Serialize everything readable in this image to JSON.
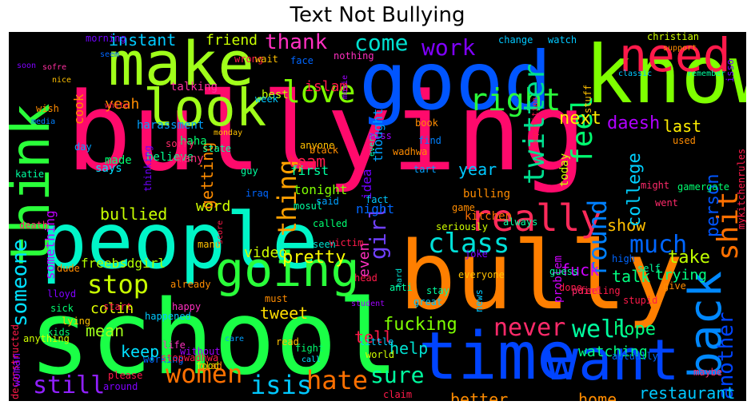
{
  "title": "Text Not Bullying",
  "background": "#000000",
  "words": [
    {
      "t": "bullying",
      "c": "#ff0a6c"
    },
    {
      "t": "bully",
      "c": "#ff7f00"
    },
    {
      "t": "school",
      "c": "#1aff46"
    },
    {
      "t": "people",
      "c": "#00f5c8"
    },
    {
      "t": "good",
      "c": "#0055ff"
    },
    {
      "t": "know",
      "c": "#7fff00"
    },
    {
      "t": "time",
      "c": "#0044ff"
    },
    {
      "t": "want",
      "c": "#0044ff"
    },
    {
      "t": "make",
      "c": "#a0ff1a"
    },
    {
      "t": "think",
      "c": "#2aff3a"
    },
    {
      "t": "look",
      "c": "#a0ff1a"
    },
    {
      "t": "need",
      "c": "#ff1a4a"
    },
    {
      "t": "going",
      "c": "#2aff3a"
    },
    {
      "t": "really",
      "c": "#ff2a5a"
    },
    {
      "t": "love",
      "c": "#7fff00"
    },
    {
      "t": "back",
      "c": "#0088ff"
    },
    {
      "t": "class",
      "c": "#00e0d8"
    },
    {
      "t": "right",
      "c": "#2aff3a"
    },
    {
      "t": "twitter",
      "c": "#00e090"
    },
    {
      "t": "stop",
      "c": "#c8ff00"
    },
    {
      "t": "still",
      "c": "#9020ff"
    },
    {
      "t": "much",
      "c": "#0066ff"
    },
    {
      "t": "never",
      "c": "#ff2a6a"
    },
    {
      "t": "well",
      "c": "#00ffa0"
    },
    {
      "t": "women",
      "c": "#ff7000"
    },
    {
      "t": "hate",
      "c": "#ff7000"
    },
    {
      "t": "isis",
      "c": "#00c8ff"
    },
    {
      "t": "sure",
      "c": "#00ffa0"
    },
    {
      "t": "thing",
      "c": "#ffa000"
    },
    {
      "t": "girl",
      "c": "#7040ff"
    },
    {
      "t": "come",
      "c": "#00e0d0"
    },
    {
      "t": "thank",
      "c": "#ff30c0"
    },
    {
      "t": "work",
      "c": "#8000ff"
    },
    {
      "t": "shit",
      "c": "#ff7000"
    },
    {
      "t": "feel",
      "c": "#00ff70"
    },
    {
      "t": "round",
      "c": "#0080ff"
    },
    {
      "t": "someone",
      "c": "#00e0ff"
    },
    {
      "t": "fucking",
      "c": "#7fff00"
    },
    {
      "t": "another",
      "c": "#0044ff"
    },
    {
      "t": "restaurant",
      "c": "#00c8ff"
    },
    {
      "t": "instant",
      "c": "#00c8ff"
    },
    {
      "t": "friend",
      "c": "#c8ff00"
    },
    {
      "t": "team",
      "c": "#ff1a4a"
    },
    {
      "t": "islam",
      "c": "#ff1a4a"
    },
    {
      "t": "pretty",
      "c": "#ffff00"
    },
    {
      "t": "video",
      "c": "#d0ff00"
    },
    {
      "t": "word",
      "c": "#d0ff00"
    },
    {
      "t": "tweet",
      "c": "#ffdd00"
    },
    {
      "t": "show",
      "c": "#ffc000"
    },
    {
      "t": "last",
      "c": "#ffee00"
    },
    {
      "t": "take",
      "c": "#c0ff00"
    },
    {
      "t": "talk",
      "c": "#00ff80"
    },
    {
      "t": "hope",
      "c": "#00ff80"
    },
    {
      "t": "keep",
      "c": "#00e0ff"
    },
    {
      "t": "help",
      "c": "#00e0d0"
    },
    {
      "t": "better",
      "c": "#ff8c00"
    },
    {
      "t": "home",
      "c": "#ff8c00"
    },
    {
      "t": "even",
      "c": "#ff30c0"
    },
    {
      "t": "tell",
      "c": "#ff1a4a"
    },
    {
      "t": "year",
      "c": "#00c8ff"
    },
    {
      "t": "next",
      "c": "#ffee00"
    },
    {
      "t": "person",
      "c": "#0055ff"
    },
    {
      "t": "daesh",
      "c": "#b000ff"
    },
    {
      "t": "college",
      "c": "#00d0ff"
    },
    {
      "t": "fuck",
      "c": "#d000ff"
    },
    {
      "t": "bullied",
      "c": "#c8ff00"
    },
    {
      "t": "getting",
      "c": "#ff8c00"
    },
    {
      "t": "mean",
      "c": "#a0ff1a"
    },
    {
      "t": "colin",
      "c": "#e0ff00"
    },
    {
      "t": "freebsdgirl",
      "c": "#b0ff00"
    },
    {
      "t": "something",
      "c": "#c000ff"
    },
    {
      "t": "thought",
      "c": "#00a0ff"
    },
    {
      "t": "trying",
      "c": "#00ff80"
    },
    {
      "t": "watching",
      "c": "#00ff80"
    },
    {
      "t": "cook",
      "c": "#ff8c00"
    },
    {
      "t": "yeah",
      "c": "#ff8c00"
    },
    {
      "t": "made",
      "c": "#00ff70"
    },
    {
      "t": "believe",
      "c": "#00ff90"
    },
    {
      "t": "harassment",
      "c": "#00a0ff"
    },
    {
      "t": "haha",
      "c": "#00ff70"
    },
    {
      "t": "many",
      "c": "#ff2a7a"
    },
    {
      "t": "first",
      "c": "#00ffa0"
    },
    {
      "t": "tonight",
      "c": "#7fff00"
    },
    {
      "t": "night",
      "c": "#0066ff"
    },
    {
      "t": "kitchen",
      "c": "#ff7000"
    },
    {
      "t": "bulling",
      "c": "#ff8c00"
    },
    {
      "t": "today",
      "c": "#d0ff00"
    },
    {
      "t": "idea",
      "c": "#7000ff"
    },
    {
      "t": "problem",
      "c": "#d000ff"
    },
    {
      "t": "says",
      "c": "#00e0ff"
    },
    {
      "t": "best",
      "c": "#c0ff00"
    },
    {
      "t": "week",
      "c": "#00c8ff"
    },
    {
      "t": "talking",
      "c": "#ff30a0"
    },
    {
      "t": "face",
      "c": "#0066ff"
    },
    {
      "t": "nothing",
      "c": "#ff30c0"
    },
    {
      "t": "wrong",
      "c": "#ff1a4a"
    },
    {
      "t": "wait",
      "c": "#ffc000"
    },
    {
      "t": "morning",
      "c": "#7000ff"
    },
    {
      "t": "change",
      "c": "#00c8ff"
    },
    {
      "t": "watch",
      "c": "#00c8ff"
    },
    {
      "t": "christian",
      "c": "#d0ff00"
    },
    {
      "t": "support",
      "c": "#ff8c00"
    },
    {
      "t": "classic",
      "c": "#00c8ff"
    },
    {
      "t": "isso",
      "c": "#7000ff"
    },
    {
      "t": "remember",
      "c": "#00ffa0"
    },
    {
      "t": "stuff",
      "c": "#ffc000"
    },
    {
      "t": "movie",
      "c": "#a000ff"
    },
    {
      "t": "competition",
      "c": "#ff1a4a"
    },
    {
      "t": "monday",
      "c": "#ffc000"
    },
    {
      "t": "state",
      "c": "#00ffa0"
    },
    {
      "t": "wadhwa",
      "c": "#ff8c00"
    },
    {
      "t": "book",
      "c": "#ff8c00"
    },
    {
      "t": "every",
      "c": "#00ffa0"
    },
    {
      "t": "find",
      "c": "#0080ff"
    },
    {
      "t": "anyone",
      "c": "#ffc000"
    },
    {
      "t": "black",
      "c": "#ff8c00"
    },
    {
      "t": "miss",
      "c": "#a000ff"
    },
    {
      "t": "tart",
      "c": "#00a0ff"
    },
    {
      "t": "used",
      "c": "#ff8c00"
    },
    {
      "t": "gamergate",
      "c": "#00ff70"
    },
    {
      "t": "mykitchenrules",
      "c": "#ff1a4a"
    },
    {
      "t": "might",
      "c": "#ff2a6a"
    },
    {
      "t": "went",
      "c": "#ff2a6a"
    },
    {
      "t": "soon",
      "c": "#8000ff"
    },
    {
      "t": "sofre",
      "c": "#ff30a0"
    },
    {
      "t": "seem",
      "c": "#0066ff"
    },
    {
      "t": "nice",
      "c": "#ffc000"
    },
    {
      "t": "white",
      "c": "#ff1a4a"
    },
    {
      "t": "wish",
      "c": "#ff8c00"
    },
    {
      "t": "media",
      "c": "#0080ff"
    },
    {
      "t": "day",
      "c": "#00a0ff"
    },
    {
      "t": "katie",
      "c": "#00ffa0"
    },
    {
      "t": "thinking",
      "c": "#7000ff"
    },
    {
      "t": "sorry",
      "c": "#ff2a6a"
    },
    {
      "t": "iraq",
      "c": "#0066ff"
    },
    {
      "t": "guy",
      "c": "#00ffa0"
    },
    {
      "t": "death",
      "c": "#ff2a6a"
    },
    {
      "t": "manu",
      "c": "#ffc000"
    },
    {
      "t": "said",
      "c": "#00a0ff"
    },
    {
      "t": "mosul",
      "c": "#00ffa0"
    },
    {
      "t": "called",
      "c": "#00ff70"
    },
    {
      "t": "seen",
      "c": "#00e0d0"
    },
    {
      "t": "head",
      "c": "#ff1a4a"
    },
    {
      "t": "victim",
      "c": "#ff1a4a"
    },
    {
      "t": "score",
      "c": "#ff1a4a"
    },
    {
      "t": "hard",
      "c": "#00e0d0"
    },
    {
      "t": "game",
      "c": "#ff8c00"
    },
    {
      "t": "seriously",
      "c": "#d0ff00"
    },
    {
      "t": "always",
      "c": "#00ffa0"
    },
    {
      "t": "fact",
      "c": "#00c8ff"
    },
    {
      "t": "dude",
      "c": "#ff8c00"
    },
    {
      "t": "lloyd",
      "c": "#8000ff"
    },
    {
      "t": "sick",
      "c": "#00ff70"
    },
    {
      "t": "lying",
      "c": "#ffc000"
    },
    {
      "t": "start",
      "c": "#ff1a4a"
    },
    {
      "t": "already",
      "c": "#ff8c00"
    },
    {
      "t": "happy",
      "c": "#ff30c0"
    },
    {
      "t": "happened",
      "c": "#00c8ff"
    },
    {
      "t": "kids",
      "c": "#00ff70"
    },
    {
      "t": "deconstructed",
      "c": "#ff1a4a"
    },
    {
      "t": "woman",
      "c": "#8000ff"
    },
    {
      "t": "anything",
      "c": "#d0ff00"
    },
    {
      "t": "please",
      "c": "#ff1a4a"
    },
    {
      "t": "around",
      "c": "#8000ff"
    },
    {
      "t": "working",
      "c": "#0066ff"
    },
    {
      "t": "stopwadhwa",
      "c": "#ff1a4a"
    },
    {
      "t": "food",
      "c": "#d0ff00"
    },
    {
      "t": "life",
      "c": "#ff30c0"
    },
    {
      "t": "care",
      "c": "#00a0ff"
    },
    {
      "t": "without",
      "c": "#a000ff"
    },
    {
      "t": "glad",
      "c": "#ff8c00"
    },
    {
      "t": "must",
      "c": "#ff8c00"
    },
    {
      "t": "read",
      "c": "#ffc000"
    },
    {
      "t": "fight",
      "c": "#00ff70"
    },
    {
      "t": "call",
      "c": "#00e0ff"
    },
    {
      "t": "world",
      "c": "#d0ff00"
    },
    {
      "t": "little",
      "c": "#00c8ff"
    },
    {
      "t": "student",
      "c": "#a000ff"
    },
    {
      "t": "anti",
      "c": "#00ffa0"
    },
    {
      "t": "stay",
      "c": "#00ffa0"
    },
    {
      "t": "great",
      "c": "#00c8ff"
    },
    {
      "t": "news",
      "c": "#00c8ff"
    },
    {
      "t": "joke",
      "c": "#8000ff"
    },
    {
      "t": "everyone",
      "c": "#ffc000"
    },
    {
      "t": "guess",
      "c": "#00ffa0"
    },
    {
      "t": "done",
      "c": "#ff1a4a"
    },
    {
      "t": "point",
      "c": "#ff2a6a"
    },
    {
      "t": "feeling",
      "c": "#ff1a4a"
    },
    {
      "t": "stupid",
      "c": "#ff1a4a"
    },
    {
      "t": "self",
      "c": "#00ffa0"
    },
    {
      "t": "give",
      "c": "#ff8c00"
    },
    {
      "t": "high",
      "c": "#0066ff"
    },
    {
      "t": "actually",
      "c": "#0066ff"
    },
    {
      "t": "maybe",
      "c": "#ff2a6a"
    },
    {
      "t": "claim",
      "c": "#ff1a4a"
    },
    {
      "t": "name",
      "c": "#ff2a6a"
    },
    {
      "t": "rule",
      "c": "#d0ff00"
    },
    {
      "t": "tomorrow",
      "c": "#ff1a4a"
    }
  ]
}
